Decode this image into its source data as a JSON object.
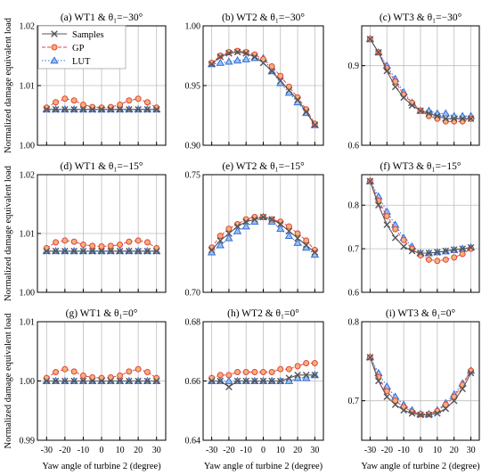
{
  "figure": {
    "ylabel": "Normalized damage equivalent load",
    "xlabel": "Yaw angle of turbine 2  (degree)",
    "legend": {
      "placement": "top-left of panel (a)",
      "entries": [
        {
          "name": "Samples",
          "marker": "x",
          "line": "solid",
          "color": "#555555"
        },
        {
          "name": "GP",
          "marker": "circle",
          "line": "dashed",
          "color": "#e0453a"
        },
        {
          "name": "LUT",
          "marker": "triangle",
          "line": "dotted",
          "color": "#2f6fdc"
        }
      ]
    },
    "colors": {
      "samples": "#555555",
      "gp_stroke": "#e0453a",
      "gp_fill": "#f3b07a",
      "lut_stroke": "#2f6fdc",
      "lut_fill": "#9fc0ef"
    }
  },
  "chart_data": [
    {
      "type": "line",
      "title": "(a) WT1 & θ₁=−30°",
      "x": [
        -30,
        -25,
        -20,
        -15,
        -10,
        -5,
        0,
        5,
        10,
        15,
        20,
        25,
        30
      ],
      "xticks": [
        "-30",
        "-20",
        "-10",
        "0",
        "10",
        "20",
        "30"
      ],
      "ylim": [
        1.0,
        1.02
      ],
      "yticks": [
        "1.00",
        "1.01",
        "1.02"
      ],
      "grid": true,
      "series": [
        {
          "name": "Samples",
          "values": [
            1.006,
            1.006,
            1.006,
            1.006,
            1.006,
            1.006,
            1.006,
            1.006,
            1.006,
            1.006,
            1.006,
            1.006,
            1.006
          ]
        },
        {
          "name": "GP",
          "values": [
            1.0063,
            1.0072,
            1.0078,
            1.0075,
            1.0068,
            1.0064,
            1.0063,
            1.0064,
            1.0068,
            1.0075,
            1.0078,
            1.0072,
            1.0063
          ]
        },
        {
          "name": "LUT",
          "values": [
            1.006,
            1.006,
            1.006,
            1.006,
            1.006,
            1.006,
            1.006,
            1.006,
            1.006,
            1.006,
            1.006,
            1.006,
            1.006
          ]
        }
      ]
    },
    {
      "type": "line",
      "title": "(b) WT2 & θ₁=−30°",
      "x": [
        -30,
        -25,
        -20,
        -15,
        -10,
        -5,
        0,
        5,
        10,
        15,
        20,
        25,
        30
      ],
      "xticks": [
        "-30",
        "-20",
        "-10",
        "0",
        "10",
        "20",
        "30"
      ],
      "ylim": [
        0.9,
        1.0
      ],
      "yticks": [
        "0.90",
        "0.95",
        "1.00"
      ],
      "grid": true,
      "series": [
        {
          "name": "Samples",
          "values": [
            0.968,
            0.974,
            0.977,
            0.978,
            0.977,
            0.974,
            0.969,
            0.962,
            0.954,
            0.946,
            0.938,
            0.928,
            0.917
          ]
        },
        {
          "name": "GP",
          "values": [
            0.969,
            0.975,
            0.978,
            0.979,
            0.978,
            0.976,
            0.972,
            0.966,
            0.958,
            0.949,
            0.94,
            0.93,
            0.918
          ]
        },
        {
          "name": "LUT",
          "values": [
            0.968,
            0.969,
            0.97,
            0.971,
            0.972,
            0.973,
            0.973,
            0.962,
            0.952,
            0.944,
            0.936,
            0.927,
            0.917
          ]
        }
      ]
    },
    {
      "type": "line",
      "title": "(c) WT3 & θ₁=−30°",
      "x": [
        -30,
        -25,
        -20,
        -15,
        -10,
        -5,
        0,
        5,
        10,
        15,
        20,
        25,
        30
      ],
      "xticks": [
        "-30",
        "-20",
        "-10",
        "0",
        "10",
        "20",
        "30"
      ],
      "ylim": [
        0.6,
        1.05
      ],
      "yticks": [
        "0.6",
        "0.9"
      ],
      "grid": true,
      "series": [
        {
          "name": "Samples",
          "values": [
            1.0,
            0.95,
            0.88,
            0.82,
            0.78,
            0.75,
            0.73,
            0.72,
            0.71,
            0.7,
            0.7,
            0.7,
            0.7
          ]
        },
        {
          "name": "GP",
          "values": [
            1.0,
            0.95,
            0.89,
            0.84,
            0.79,
            0.76,
            0.73,
            0.71,
            0.7,
            0.69,
            0.69,
            0.69,
            0.7
          ]
        },
        {
          "name": "LUT",
          "values": [
            1.0,
            0.95,
            0.9,
            0.85,
            0.8,
            0.76,
            0.73,
            0.73,
            0.72,
            0.72,
            0.71,
            0.71,
            0.71
          ]
        }
      ]
    },
    {
      "type": "line",
      "title": "(d) WT1 & θ₁=−15°",
      "x": [
        -30,
        -25,
        -20,
        -15,
        -10,
        -5,
        0,
        5,
        10,
        15,
        20,
        25,
        30
      ],
      "xticks": [
        "-30",
        "-20",
        "-10",
        "0",
        "10",
        "20",
        "30"
      ],
      "ylim": [
        1.0,
        1.02
      ],
      "yticks": [
        "1.00",
        "1.01",
        "1.02"
      ],
      "grid": true,
      "series": [
        {
          "name": "Samples",
          "values": [
            1.007,
            1.007,
            1.007,
            1.007,
            1.007,
            1.007,
            1.007,
            1.007,
            1.007,
            1.007,
            1.007,
            1.007,
            1.007
          ]
        },
        {
          "name": "GP",
          "values": [
            1.0075,
            1.0085,
            1.0088,
            1.0086,
            1.0081,
            1.0079,
            1.0078,
            1.0079,
            1.0081,
            1.0086,
            1.0088,
            1.0085,
            1.0075
          ]
        },
        {
          "name": "LUT",
          "values": [
            1.007,
            1.007,
            1.007,
            1.007,
            1.007,
            1.007,
            1.007,
            1.007,
            1.007,
            1.007,
            1.007,
            1.007,
            1.007
          ]
        }
      ]
    },
    {
      "type": "line",
      "title": "(e) WT2 & θ₁=−15°",
      "x": [
        -30,
        -25,
        -20,
        -15,
        -10,
        -5,
        0,
        5,
        10,
        15,
        20,
        25,
        30
      ],
      "xticks": [
        "-30",
        "-20",
        "-10",
        "0",
        "10",
        "20",
        "30"
      ],
      "ylim": [
        0.7,
        0.75
      ],
      "yticks": [
        "0.70",
        "0.75"
      ],
      "grid": true,
      "series": [
        {
          "name": "Samples",
          "values": [
            0.718,
            0.722,
            0.725,
            0.728,
            0.73,
            0.731,
            0.732,
            0.731,
            0.729,
            0.726,
            0.723,
            0.72,
            0.717
          ]
        },
        {
          "name": "GP",
          "values": [
            0.719,
            0.724,
            0.727,
            0.729,
            0.731,
            0.732,
            0.732,
            0.731,
            0.73,
            0.728,
            0.725,
            0.722,
            0.718
          ]
        },
        {
          "name": "LUT",
          "values": [
            0.717,
            0.72,
            0.723,
            0.726,
            0.728,
            0.73,
            0.732,
            0.73,
            0.727,
            0.724,
            0.721,
            0.719,
            0.716
          ]
        }
      ]
    },
    {
      "type": "line",
      "title": "(f) WT3 & θ₁=−15°",
      "x": [
        -30,
        -25,
        -20,
        -15,
        -10,
        -5,
        0,
        5,
        10,
        15,
        20,
        25,
        30
      ],
      "xticks": [
        "-30",
        "-20",
        "-10",
        "0",
        "10",
        "20",
        "30"
      ],
      "ylim": [
        0.6,
        0.87
      ],
      "yticks": [
        "0.6",
        "0.7",
        "0.8"
      ],
      "grid": true,
      "series": [
        {
          "name": "Samples",
          "values": [
            0.855,
            0.8,
            0.755,
            0.725,
            0.705,
            0.695,
            0.69,
            0.69,
            0.692,
            0.695,
            0.698,
            0.7,
            0.703
          ]
        },
        {
          "name": "GP",
          "values": [
            0.855,
            0.81,
            0.775,
            0.745,
            0.72,
            0.7,
            0.685,
            0.675,
            0.672,
            0.675,
            0.68,
            0.688,
            0.7
          ]
        },
        {
          "name": "LUT",
          "values": [
            0.855,
            0.82,
            0.785,
            0.755,
            0.725,
            0.705,
            0.69,
            0.69,
            0.692,
            0.694,
            0.697,
            0.7,
            0.703
          ]
        }
      ]
    },
    {
      "type": "line",
      "title": "(g) WT1 & θ₁=0°",
      "x": [
        -30,
        -25,
        -20,
        -15,
        -10,
        -5,
        0,
        5,
        10,
        15,
        20,
        25,
        30
      ],
      "xticks": [
        "-30",
        "-20",
        "-10",
        "0",
        "10",
        "20",
        "30"
      ],
      "ylim": [
        0.99,
        1.01
      ],
      "yticks": [
        "0.99",
        "1.00",
        "1.01"
      ],
      "grid": true,
      "series": [
        {
          "name": "Samples",
          "values": [
            1.0,
            1.0,
            1.0,
            1.0,
            1.0,
            1.0,
            1.0,
            1.0,
            1.0,
            1.0,
            1.0,
            1.0,
            1.0
          ]
        },
        {
          "name": "GP",
          "values": [
            1.0005,
            1.0015,
            1.002,
            1.0016,
            1.0009,
            1.0006,
            1.0005,
            1.0006,
            1.0009,
            1.0016,
            1.002,
            1.0015,
            1.0005
          ]
        },
        {
          "name": "LUT",
          "values": [
            1.0,
            1.0,
            1.0,
            1.0,
            1.0,
            1.0,
            1.0,
            1.0,
            1.0,
            1.0,
            1.0,
            1.0,
            1.0
          ]
        }
      ]
    },
    {
      "type": "line",
      "title": "(h) WT2 & θ₁=0°",
      "x": [
        -30,
        -25,
        -20,
        -15,
        -10,
        -5,
        0,
        5,
        10,
        15,
        20,
        25,
        30
      ],
      "xticks": [
        "-30",
        "-20",
        "-10",
        "0",
        "10",
        "20",
        "30"
      ],
      "ylim": [
        0.64,
        0.68
      ],
      "yticks": [
        "0.64",
        "0.66",
        "0.68"
      ],
      "grid": true,
      "series": [
        {
          "name": "Samples",
          "values": [
            0.66,
            0.66,
            0.658,
            0.66,
            0.66,
            0.66,
            0.66,
            0.66,
            0.66,
            0.661,
            0.662,
            0.662,
            0.662
          ]
        },
        {
          "name": "GP",
          "values": [
            0.661,
            0.662,
            0.662,
            0.663,
            0.663,
            0.663,
            0.663,
            0.663,
            0.664,
            0.664,
            0.665,
            0.666,
            0.666
          ]
        },
        {
          "name": "LUT",
          "values": [
            0.66,
            0.66,
            0.66,
            0.66,
            0.66,
            0.66,
            0.66,
            0.66,
            0.66,
            0.66,
            0.661,
            0.661,
            0.662
          ]
        }
      ]
    },
    {
      "type": "line",
      "title": "(i) WT3 & θ₁=0°",
      "x": [
        -30,
        -25,
        -20,
        -15,
        -10,
        -5,
        0,
        5,
        10,
        15,
        20,
        25,
        30
      ],
      "xticks": [
        "-30",
        "-20",
        "-10",
        "0",
        "10",
        "20",
        "30"
      ],
      "ylim": [
        0.65,
        0.8
      ],
      "yticks": [
        "0.7",
        "0.8"
      ],
      "grid": true,
      "series": [
        {
          "name": "Samples",
          "values": [
            0.755,
            0.725,
            0.705,
            0.695,
            0.688,
            0.684,
            0.682,
            0.682,
            0.684,
            0.69,
            0.7,
            0.715,
            0.735
          ]
        },
        {
          "name": "GP",
          "values": [
            0.755,
            0.73,
            0.712,
            0.7,
            0.692,
            0.686,
            0.683,
            0.683,
            0.687,
            0.695,
            0.705,
            0.72,
            0.738
          ]
        },
        {
          "name": "LUT",
          "values": [
            0.755,
            0.735,
            0.718,
            0.705,
            0.695,
            0.688,
            0.683,
            0.683,
            0.688,
            0.697,
            0.708,
            0.722,
            0.738
          ]
        }
      ]
    }
  ]
}
